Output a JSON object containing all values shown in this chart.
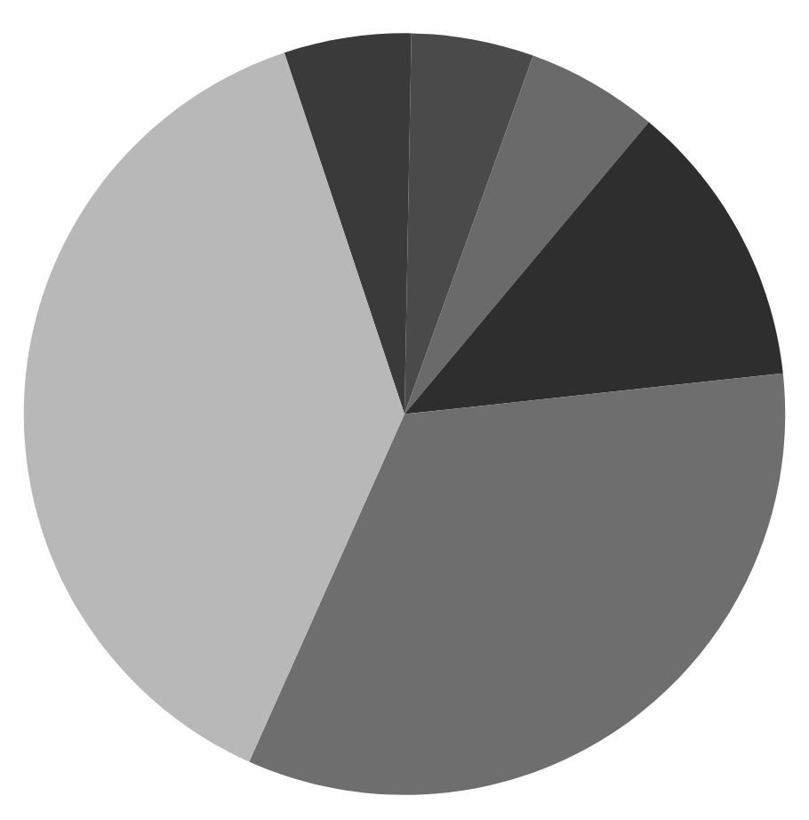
{
  "chart_data": {
    "type": "pie",
    "categories": [
      null,
      null,
      null,
      null,
      null,
      null
    ],
    "values": [
      5.4,
      5.2,
      5.6,
      12.2,
      33.4,
      38.2
    ],
    "colors": [
      "#3a3a3a",
      "#4a4a4a",
      "#6a6a6a",
      "#2e2e2e",
      "#6e6e6e",
      "#b8b8b8"
    ]
  }
}
